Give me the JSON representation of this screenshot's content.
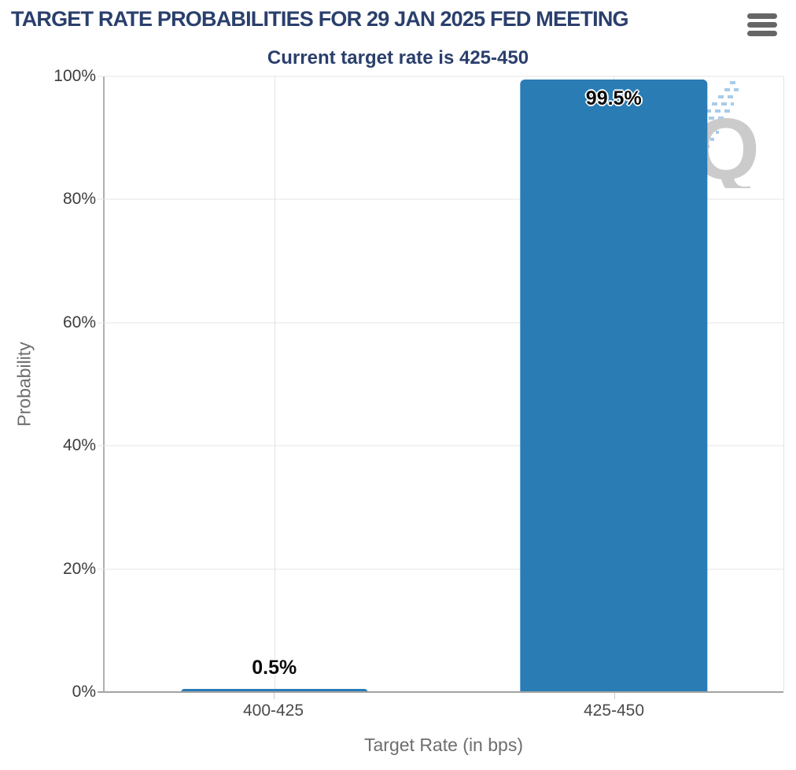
{
  "header": {
    "menu_icon": "hamburger-menu-icon"
  },
  "watermark": {
    "letter": "Q"
  },
  "colors": {
    "bar": "#2a7cb5",
    "title_text": "#2a3f6c",
    "gridline": "#e4e4e4",
    "axis_line": "#a3a3a3",
    "tick_text": "#3d3d3d",
    "axis_title_text": "#6e6e6e",
    "menu_icon": "#666666",
    "watermark_letter": "#cbcbcb",
    "watermark_hatch": "#a8cce9"
  },
  "chart_data": {
    "type": "bar",
    "title": "TARGET RATE PROBABILITIES FOR 29 JAN 2025 FED MEETING",
    "subtitle": "Current target rate is 425-450",
    "categories": [
      "400-425",
      "425-450"
    ],
    "values": [
      0.5,
      99.5
    ],
    "value_labels": [
      "0.5%",
      "99.5%"
    ],
    "xlabel": "Target Rate (in bps)",
    "ylabel": "Probability",
    "ylim": [
      0,
      100
    ],
    "yticks": [
      0,
      20,
      40,
      60,
      80,
      100
    ],
    "ytick_labels": [
      "0%",
      "20%",
      "40%",
      "60%",
      "80%",
      "100%"
    ],
    "grid": true,
    "legend": false,
    "bar_color": "#2a7cb5"
  }
}
